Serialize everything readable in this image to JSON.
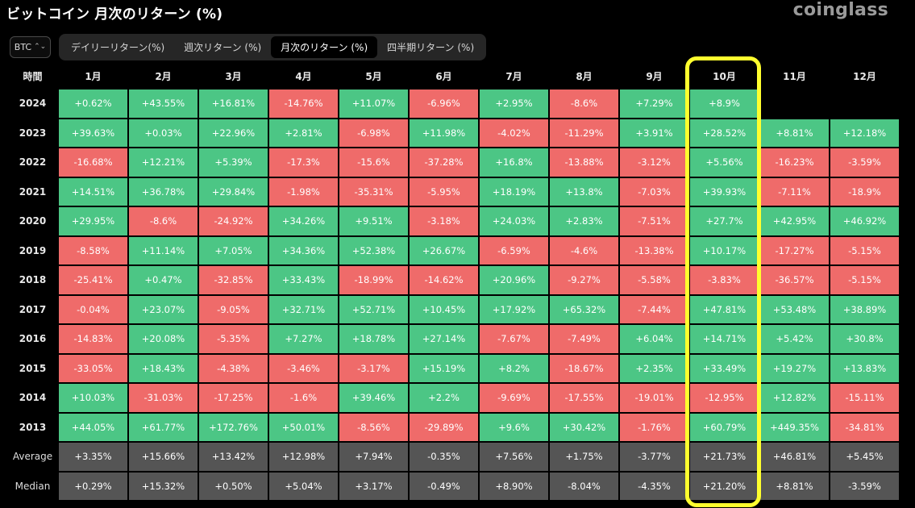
{
  "header": {
    "title": "ビットコイン 月次のリターン (%)",
    "brand": "coinglass"
  },
  "asset_select": {
    "value": "BTC",
    "icon": "chevron-up-down-icon"
  },
  "tabs": [
    {
      "label": "デイリーリターン(%)",
      "active": false
    },
    {
      "label": "週次リターン (%)",
      "active": false
    },
    {
      "label": "月次のリターン (%)",
      "active": true
    },
    {
      "label": "四半期リターン (%)",
      "active": false
    }
  ],
  "table": {
    "row_header": "時間",
    "months": [
      "1月",
      "2月",
      "3月",
      "4月",
      "5月",
      "6月",
      "7月",
      "8月",
      "9月",
      "10月",
      "11月",
      "12月"
    ],
    "rows": [
      {
        "label": "2024",
        "values": [
          "+0.62%",
          "+43.55%",
          "+16.81%",
          "-14.76%",
          "+11.07%",
          "-6.96%",
          "+2.95%",
          "-8.6%",
          "+7.29%",
          "+8.9%",
          "",
          ""
        ]
      },
      {
        "label": "2023",
        "values": [
          "+39.63%",
          "+0.03%",
          "+22.96%",
          "+2.81%",
          "-6.98%",
          "+11.98%",
          "-4.02%",
          "-11.29%",
          "+3.91%",
          "+28.52%",
          "+8.81%",
          "+12.18%"
        ]
      },
      {
        "label": "2022",
        "values": [
          "-16.68%",
          "+12.21%",
          "+5.39%",
          "-17.3%",
          "-15.6%",
          "-37.28%",
          "+16.8%",
          "-13.88%",
          "-3.12%",
          "+5.56%",
          "-16.23%",
          "-3.59%"
        ]
      },
      {
        "label": "2021",
        "values": [
          "+14.51%",
          "+36.78%",
          "+29.84%",
          "-1.98%",
          "-35.31%",
          "-5.95%",
          "+18.19%",
          "+13.8%",
          "-7.03%",
          "+39.93%",
          "-7.11%",
          "-18.9%"
        ]
      },
      {
        "label": "2020",
        "values": [
          "+29.95%",
          "-8.6%",
          "-24.92%",
          "+34.26%",
          "+9.51%",
          "-3.18%",
          "+24.03%",
          "+2.83%",
          "-7.51%",
          "+27.7%",
          "+42.95%",
          "+46.92%"
        ]
      },
      {
        "label": "2019",
        "values": [
          "-8.58%",
          "+11.14%",
          "+7.05%",
          "+34.36%",
          "+52.38%",
          "+26.67%",
          "-6.59%",
          "-4.6%",
          "-13.38%",
          "+10.17%",
          "-17.27%",
          "-5.15%"
        ]
      },
      {
        "label": "2018",
        "values": [
          "-25.41%",
          "+0.47%",
          "-32.85%",
          "+33.43%",
          "-18.99%",
          "-14.62%",
          "+20.96%",
          "-9.27%",
          "-5.58%",
          "-3.83%",
          "-36.57%",
          "-5.15%"
        ]
      },
      {
        "label": "2017",
        "values": [
          "-0.04%",
          "+23.07%",
          "-9.05%",
          "+32.71%",
          "+52.71%",
          "+10.45%",
          "+17.92%",
          "+65.32%",
          "-7.44%",
          "+47.81%",
          "+53.48%",
          "+38.89%"
        ]
      },
      {
        "label": "2016",
        "values": [
          "-14.83%",
          "+20.08%",
          "-5.35%",
          "+7.27%",
          "+18.78%",
          "+27.14%",
          "-7.67%",
          "-7.49%",
          "+6.04%",
          "+14.71%",
          "+5.42%",
          "+30.8%"
        ]
      },
      {
        "label": "2015",
        "values": [
          "-33.05%",
          "+18.43%",
          "-4.38%",
          "-3.46%",
          "-3.17%",
          "+15.19%",
          "+8.2%",
          "-18.67%",
          "+2.35%",
          "+33.49%",
          "+19.27%",
          "+13.83%"
        ]
      },
      {
        "label": "2014",
        "values": [
          "+10.03%",
          "-31.03%",
          "-17.25%",
          "-1.6%",
          "+39.46%",
          "+2.2%",
          "-9.69%",
          "-17.55%",
          "-19.01%",
          "-12.95%",
          "+12.82%",
          "-15.11%"
        ]
      },
      {
        "label": "2013",
        "values": [
          "+44.05%",
          "+61.77%",
          "+172.76%",
          "+50.01%",
          "-8.56%",
          "-29.89%",
          "+9.6%",
          "+30.42%",
          "-1.76%",
          "+60.79%",
          "+449.35%",
          "-34.81%"
        ]
      }
    ],
    "stat_rows": [
      {
        "label": "Average",
        "values": [
          "+3.35%",
          "+15.66%",
          "+13.42%",
          "+12.98%",
          "+7.94%",
          "-0.35%",
          "+7.56%",
          "+1.75%",
          "-3.77%",
          "+21.73%",
          "+46.81%",
          "+5.45%"
        ]
      },
      {
        "label": "Median",
        "values": [
          "+0.29%",
          "+15.32%",
          "+0.50%",
          "+5.04%",
          "+3.17%",
          "-0.49%",
          "+8.90%",
          "-8.04%",
          "-4.35%",
          "+21.20%",
          "+8.81%",
          "-3.59%"
        ]
      }
    ]
  },
  "colors": {
    "positive": "#4cc685",
    "negative": "#ef6b6a",
    "stat": "#555555",
    "highlight": "#ffff2e"
  },
  "highlight": {
    "column": "10月"
  }
}
